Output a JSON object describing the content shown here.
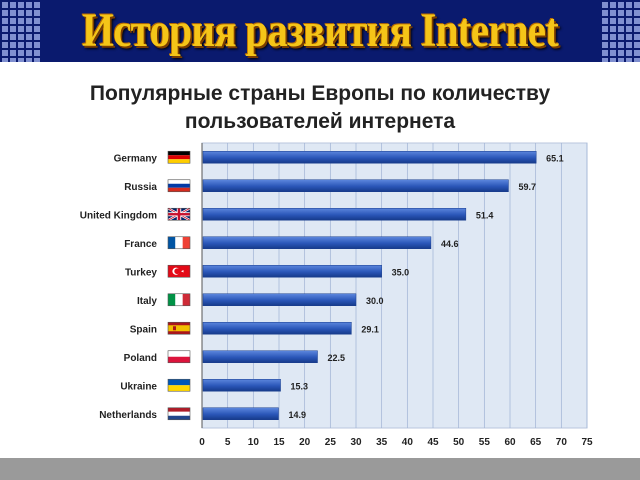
{
  "header": {
    "title": "История развития Internet"
  },
  "subtitle": "Популярные страны Европы по количеству пользователей интернета",
  "colors": {
    "bar": "#2a56b8",
    "bar_light": "#5c86dd",
    "plot_bg": "#dfe8f4",
    "grid": "#9fb2d4",
    "header_bg": "#0a1a6e",
    "title": "#f5c518"
  },
  "chart_data": {
    "type": "bar",
    "orientation": "horizontal",
    "categories": [
      "Germany",
      "Russia",
      "United Kingdom",
      "France",
      "Turkey",
      "Italy",
      "Spain",
      "Poland",
      "Ukraine",
      "Netherlands"
    ],
    "values": [
      65.1,
      59.7,
      51.4,
      44.6,
      35.0,
      30.0,
      29.1,
      22.5,
      15.3,
      14.9
    ],
    "value_labels": [
      "65.1",
      "59.7",
      "51.4",
      "44.6",
      "35.0",
      "30.0",
      "29.1",
      "22.5",
      "15.3",
      "14.9"
    ],
    "flags": [
      "germany-flag",
      "russia-flag",
      "united-kingdom-flag",
      "france-flag",
      "turkey-flag",
      "italy-flag",
      "spain-flag",
      "poland-flag",
      "ukraine-flag",
      "netherlands-flag"
    ],
    "xticks": [
      "0",
      "5",
      "10",
      "15",
      "20",
      "25",
      "30",
      "35",
      "40",
      "45",
      "50",
      "55",
      "60",
      "65",
      "70",
      "75"
    ],
    "xlim": [
      0,
      75
    ],
    "grid": true
  }
}
